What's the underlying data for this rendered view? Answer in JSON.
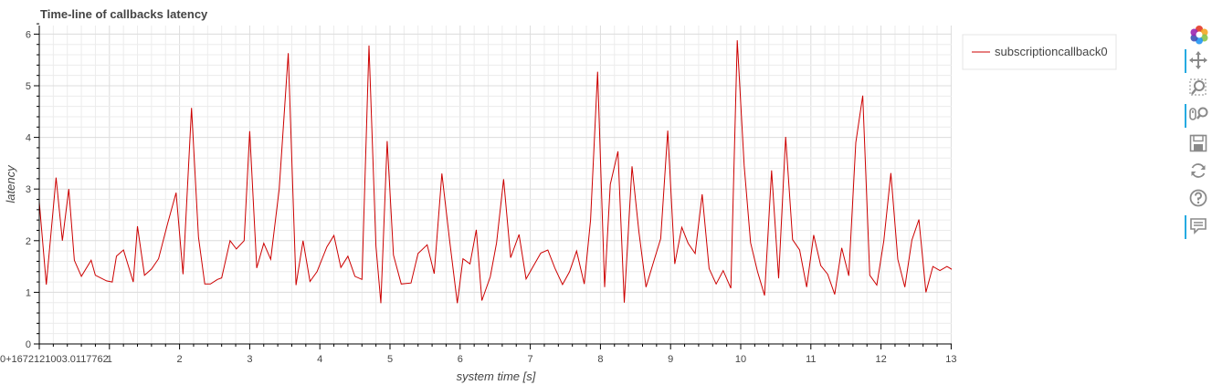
{
  "chart_data": {
    "type": "line",
    "title": "Time-line of callbacks latency",
    "xlabel": "system time [s]",
    "ylabel": "latency",
    "xlim": [
      0,
      13
    ],
    "ylim": [
      0,
      6.2
    ],
    "x_ticks": [
      {
        "value": 0,
        "label": "0+1672121003.0117762"
      },
      {
        "value": 1,
        "label": "1"
      },
      {
        "value": 2,
        "label": "2"
      },
      {
        "value": 3,
        "label": "3"
      },
      {
        "value": 4,
        "label": "4"
      },
      {
        "value": 5,
        "label": "5"
      },
      {
        "value": 6,
        "label": "6"
      },
      {
        "value": 7,
        "label": "7"
      },
      {
        "value": 8,
        "label": "8"
      },
      {
        "value": 9,
        "label": "9"
      },
      {
        "value": 10,
        "label": "10"
      },
      {
        "value": 11,
        "label": "11"
      },
      {
        "value": 12,
        "label": "12"
      },
      {
        "value": 13,
        "label": "13"
      }
    ],
    "y_ticks": [
      0,
      1,
      2,
      3,
      4,
      5,
      6
    ],
    "grid": true,
    "legend_position": "right",
    "series": [
      {
        "name": "subscriptioncallback0",
        "color": "#cc0000",
        "x": [
          0,
          0.1,
          0.24,
          0.33,
          0.42,
          0.5,
          0.6,
          0.74,
          0.8,
          0.96,
          1.04,
          1.1,
          1.2,
          1.34,
          1.4,
          1.5,
          1.6,
          1.7,
          1.83,
          1.95,
          2.05,
          2.17,
          2.27,
          2.36,
          2.44,
          2.54,
          2.6,
          2.72,
          2.81,
          2.92,
          3.0,
          3.1,
          3.2,
          3.3,
          3.42,
          3.55,
          3.66,
          3.76,
          3.86,
          3.96,
          4.1,
          4.2,
          4.3,
          4.4,
          4.5,
          4.6,
          4.7,
          4.8,
          4.87,
          4.96,
          5.05,
          5.16,
          5.3,
          5.4,
          5.53,
          5.63,
          5.74,
          5.85,
          5.96,
          6.04,
          6.14,
          6.23,
          6.31,
          6.43,
          6.52,
          6.62,
          6.72,
          6.84,
          6.94,
          7.04,
          7.15,
          7.25,
          7.35,
          7.46,
          7.56,
          7.66,
          7.77,
          7.86,
          7.96,
          8.06,
          8.14,
          8.25,
          8.34,
          8.45,
          8.55,
          8.65,
          8.76,
          8.86,
          8.96,
          9.06,
          9.16,
          9.25,
          9.35,
          9.45,
          9.55,
          9.65,
          9.75,
          9.86,
          9.95,
          10.05,
          10.14,
          10.24,
          10.34,
          10.44,
          10.54,
          10.64,
          10.74,
          10.84,
          10.94,
          11.04,
          11.14,
          11.24,
          11.34,
          11.44,
          11.54,
          11.64,
          11.74,
          11.84,
          11.94,
          12.04,
          12.14,
          12.24,
          12.34,
          12.44,
          12.54,
          12.64,
          12.74,
          12.84,
          12.94,
          13.04,
          13.14
        ],
        "y": [
          2.75,
          1.15,
          3.22,
          2.0,
          3.0,
          1.62,
          1.31,
          1.62,
          1.33,
          1.22,
          1.2,
          1.7,
          1.82,
          1.2,
          2.28,
          1.33,
          1.45,
          1.65,
          2.33,
          2.93,
          1.35,
          4.57,
          2.07,
          1.16,
          1.16,
          1.25,
          1.28,
          2.0,
          1.84,
          2.0,
          4.12,
          1.47,
          1.95,
          1.64,
          3.0,
          5.63,
          1.14,
          2.0,
          1.21,
          1.4,
          1.88,
          2.1,
          1.48,
          1.7,
          1.31,
          1.25,
          5.78,
          1.9,
          0.79,
          3.93,
          1.72,
          1.16,
          1.18,
          1.75,
          1.92,
          1.36,
          3.3,
          2.0,
          0.79,
          1.65,
          1.55,
          2.21,
          0.84,
          1.3,
          1.96,
          3.19,
          1.67,
          2.12,
          1.26,
          1.5,
          1.76,
          1.82,
          1.47,
          1.15,
          1.4,
          1.8,
          1.16,
          2.4,
          5.27,
          1.1,
          3.09,
          3.73,
          0.8,
          3.44,
          2.16,
          1.1,
          1.6,
          2.04,
          4.13,
          1.55,
          2.26,
          1.95,
          1.75,
          2.9,
          1.46,
          1.16,
          1.42,
          1.08,
          5.88,
          3.45,
          1.96,
          1.4,
          0.94,
          3.36,
          1.27,
          4.01,
          2.02,
          1.82,
          1.1,
          2.11,
          1.52,
          1.35,
          0.96,
          1.86,
          1.32,
          3.9,
          4.81,
          1.33,
          1.14,
          2.0,
          3.31,
          1.64,
          1.1,
          2.01,
          2.41,
          1.0,
          1.5,
          1.42,
          1.5,
          1.42,
          1.5
        ]
      }
    ]
  },
  "toolbar": {
    "items": [
      {
        "name": "bokeh-logo-icon",
        "active": false
      },
      {
        "name": "pan-icon",
        "active": true
      },
      {
        "name": "box-zoom-icon",
        "active": false
      },
      {
        "name": "wheel-zoom-icon",
        "active": true
      },
      {
        "name": "save-icon",
        "active": false
      },
      {
        "name": "reset-icon",
        "active": false
      },
      {
        "name": "help-icon",
        "active": false
      },
      {
        "name": "hover-icon",
        "active": true
      }
    ]
  }
}
